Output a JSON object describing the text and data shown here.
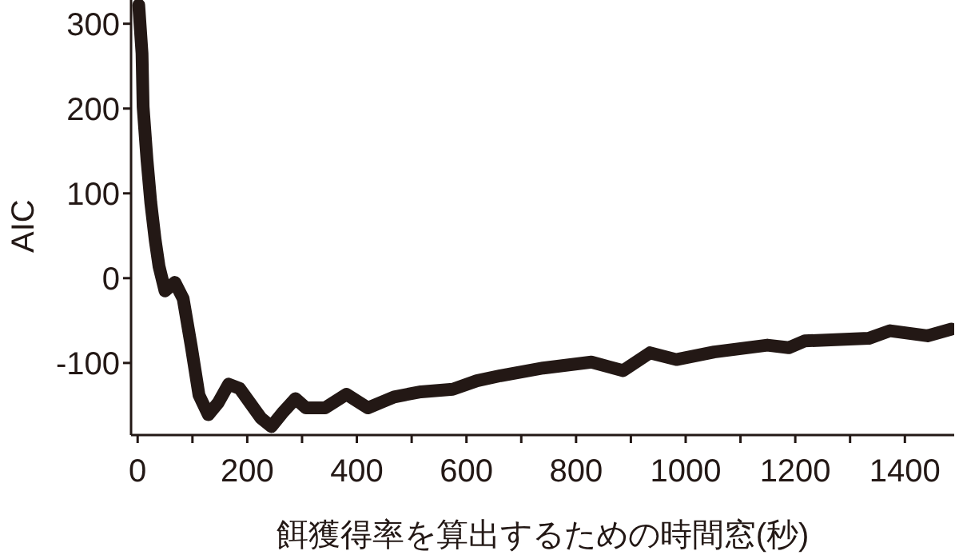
{
  "chart_data": {
    "type": "line",
    "xlabel": "餌獲得率を算出するための時間窓(秒)",
    "ylabel": "AIC",
    "x": [
      2,
      8,
      10,
      17,
      24,
      32,
      39,
      50,
      68,
      83,
      98,
      112,
      129,
      147,
      166,
      186,
      205,
      225,
      244,
      264,
      288,
      307,
      342,
      381,
      420,
      468,
      517,
      575,
      619,
      662,
      740,
      828,
      886,
      935,
      983,
      1052,
      1149,
      1188,
      1217,
      1334,
      1373,
      1441,
      1485
    ],
    "series": [
      {
        "color": "#231815",
        "values": [
          322,
          265,
          202,
          140,
          89,
          45,
          14,
          -15,
          -5,
          -24,
          -81,
          -138,
          -161,
          -147,
          -125,
          -130,
          -147,
          -165,
          -175,
          -159,
          -142,
          -153,
          -153,
          -137,
          -153,
          -140,
          -134,
          -131,
          -121,
          -115,
          -106,
          -99,
          -109,
          -88,
          -96,
          -87,
          -79,
          -82,
          -74,
          -71,
          -62,
          -68,
          -60
        ]
      }
    ],
    "xlim": [
      -12,
      1490
    ],
    "ylim": [
      -185,
      328
    ],
    "xticks": [
      0,
      {
        "value": 100,
        "label": null
      },
      200,
      {
        "value": 300,
        "label": null
      },
      400,
      {
        "value": 500,
        "label": null
      },
      600,
      {
        "value": 700,
        "label": null
      },
      800,
      {
        "value": 900,
        "label": null
      },
      1000,
      {
        "value": 1100,
        "label": null
      },
      1200,
      {
        "value": 1300,
        "label": null
      },
      1400
    ],
    "yticks": [
      -100,
      0,
      100,
      200,
      300
    ],
    "grid": false,
    "legend": false,
    "marker": "none",
    "line_style": "solid"
  }
}
